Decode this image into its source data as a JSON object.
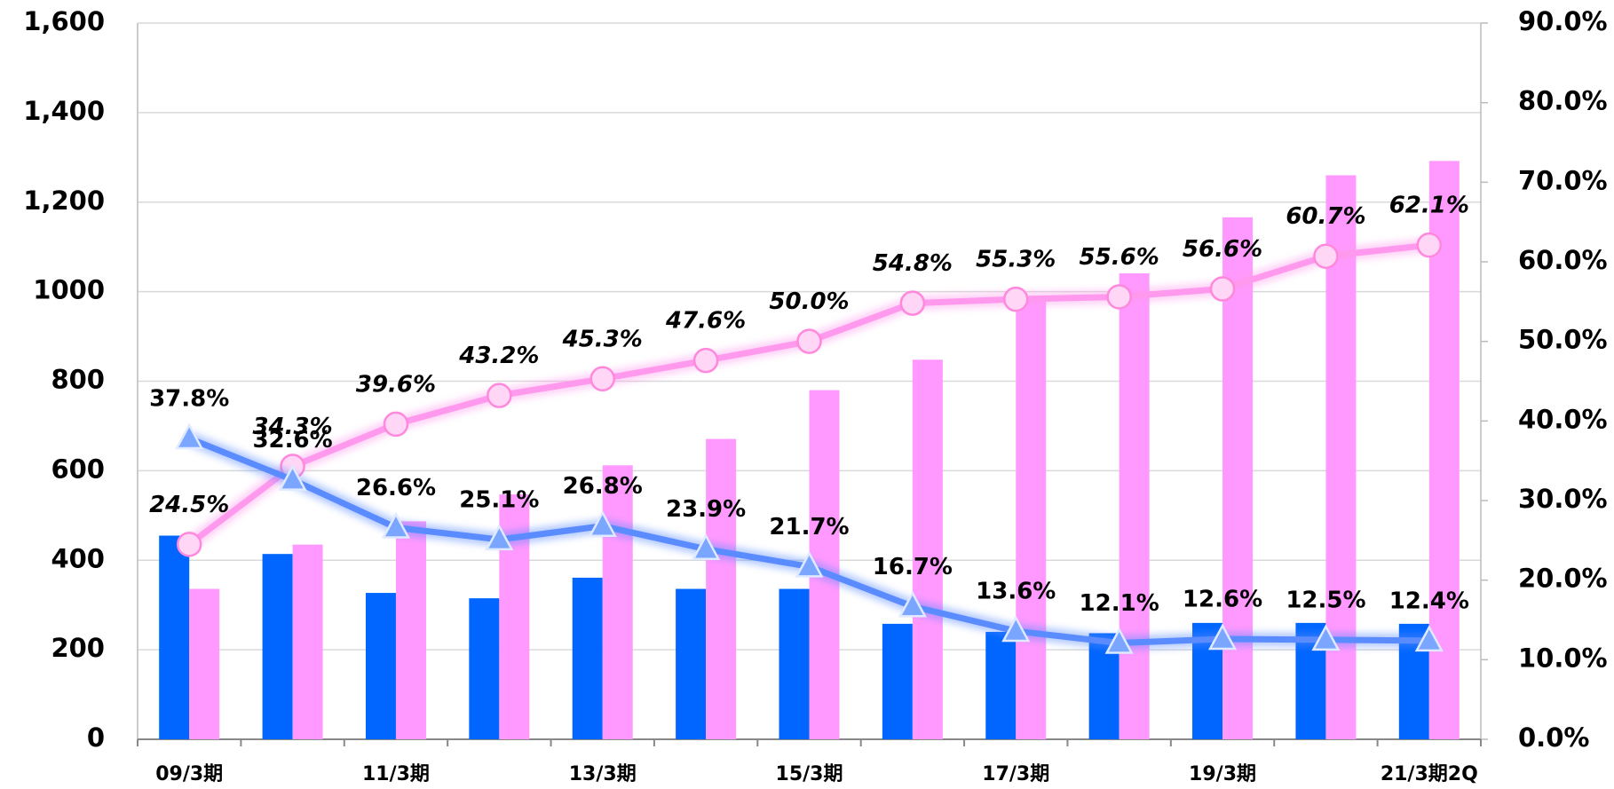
{
  "chart_data": {
    "type": "bar",
    "categories": [
      "09/3期",
      null,
      "11/3期",
      null,
      "13/3期",
      null,
      "15/3期",
      null,
      "17/3期",
      null,
      "19/3期",
      null,
      "21/3期2Q"
    ],
    "series": [
      {
        "type": "bar",
        "color": "#0066ff",
        "values": [
          455,
          414,
          327,
          315,
          361,
          336,
          336,
          258,
          240,
          237,
          260,
          260,
          258
        ]
      },
      {
        "type": "bar",
        "color": "#ff99ff",
        "values": [
          336,
          435,
          487,
          547,
          612,
          671,
          780,
          848,
          984,
          1041,
          1166,
          1260,
          1292
        ]
      },
      {
        "type": "line",
        "axis": "y2",
        "color": "#ff99ee",
        "marker": "circle",
        "label_style": "italic",
        "values": [
          24.5,
          34.3,
          39.6,
          43.2,
          45.3,
          47.6,
          50.0,
          54.8,
          55.3,
          55.6,
          56.6,
          60.7,
          62.1
        ],
        "value_labels": [
          "24.5%",
          "34.3%",
          "39.6%",
          "43.2%",
          "45.3%",
          "47.6%",
          "50.0%",
          "54.8%",
          "55.3%",
          "55.6%",
          "56.6%",
          "60.7%",
          "62.1%"
        ]
      },
      {
        "type": "line",
        "axis": "y2",
        "color": "#5b8cff",
        "marker": "triangle",
        "label_style": "normal",
        "values": [
          37.8,
          32.6,
          26.6,
          25.1,
          26.8,
          23.9,
          21.7,
          16.7,
          13.6,
          12.1,
          12.6,
          12.5,
          12.4
        ],
        "value_labels": [
          "37.8%",
          "32.6%",
          "26.6%",
          "25.1%",
          "26.8%",
          "23.9%",
          "21.7%",
          "16.7%",
          "13.6%",
          "12.1%",
          "12.6%",
          "12.5%",
          "12.4%"
        ]
      }
    ],
    "ylim": [
      0,
      1600
    ],
    "yticks": [
      0,
      200,
      400,
      600,
      800,
      1000,
      {
        "value": 1200,
        "label": "1,200"
      },
      {
        "value": 1400,
        "label": "1,400"
      },
      {
        "value": 1600,
        "label": "1,600"
      }
    ],
    "y2lim": [
      0,
      90
    ],
    "y2ticks": [
      {
        "value": 0,
        "label": "0.0%"
      },
      {
        "value": 10,
        "label": "10.0%"
      },
      {
        "value": 20,
        "label": "20.0%"
      },
      {
        "value": 30,
        "label": "30.0%"
      },
      {
        "value": 40,
        "label": "40.0%"
      },
      {
        "value": 50,
        "label": "50.0%"
      },
      {
        "value": 60,
        "label": "60.0%"
      },
      {
        "value": 70,
        "label": "70.0%"
      },
      {
        "value": 80,
        "label": "80.0%"
      },
      {
        "value": 90,
        "label": "90.0%"
      }
    ],
    "grid": true
  }
}
